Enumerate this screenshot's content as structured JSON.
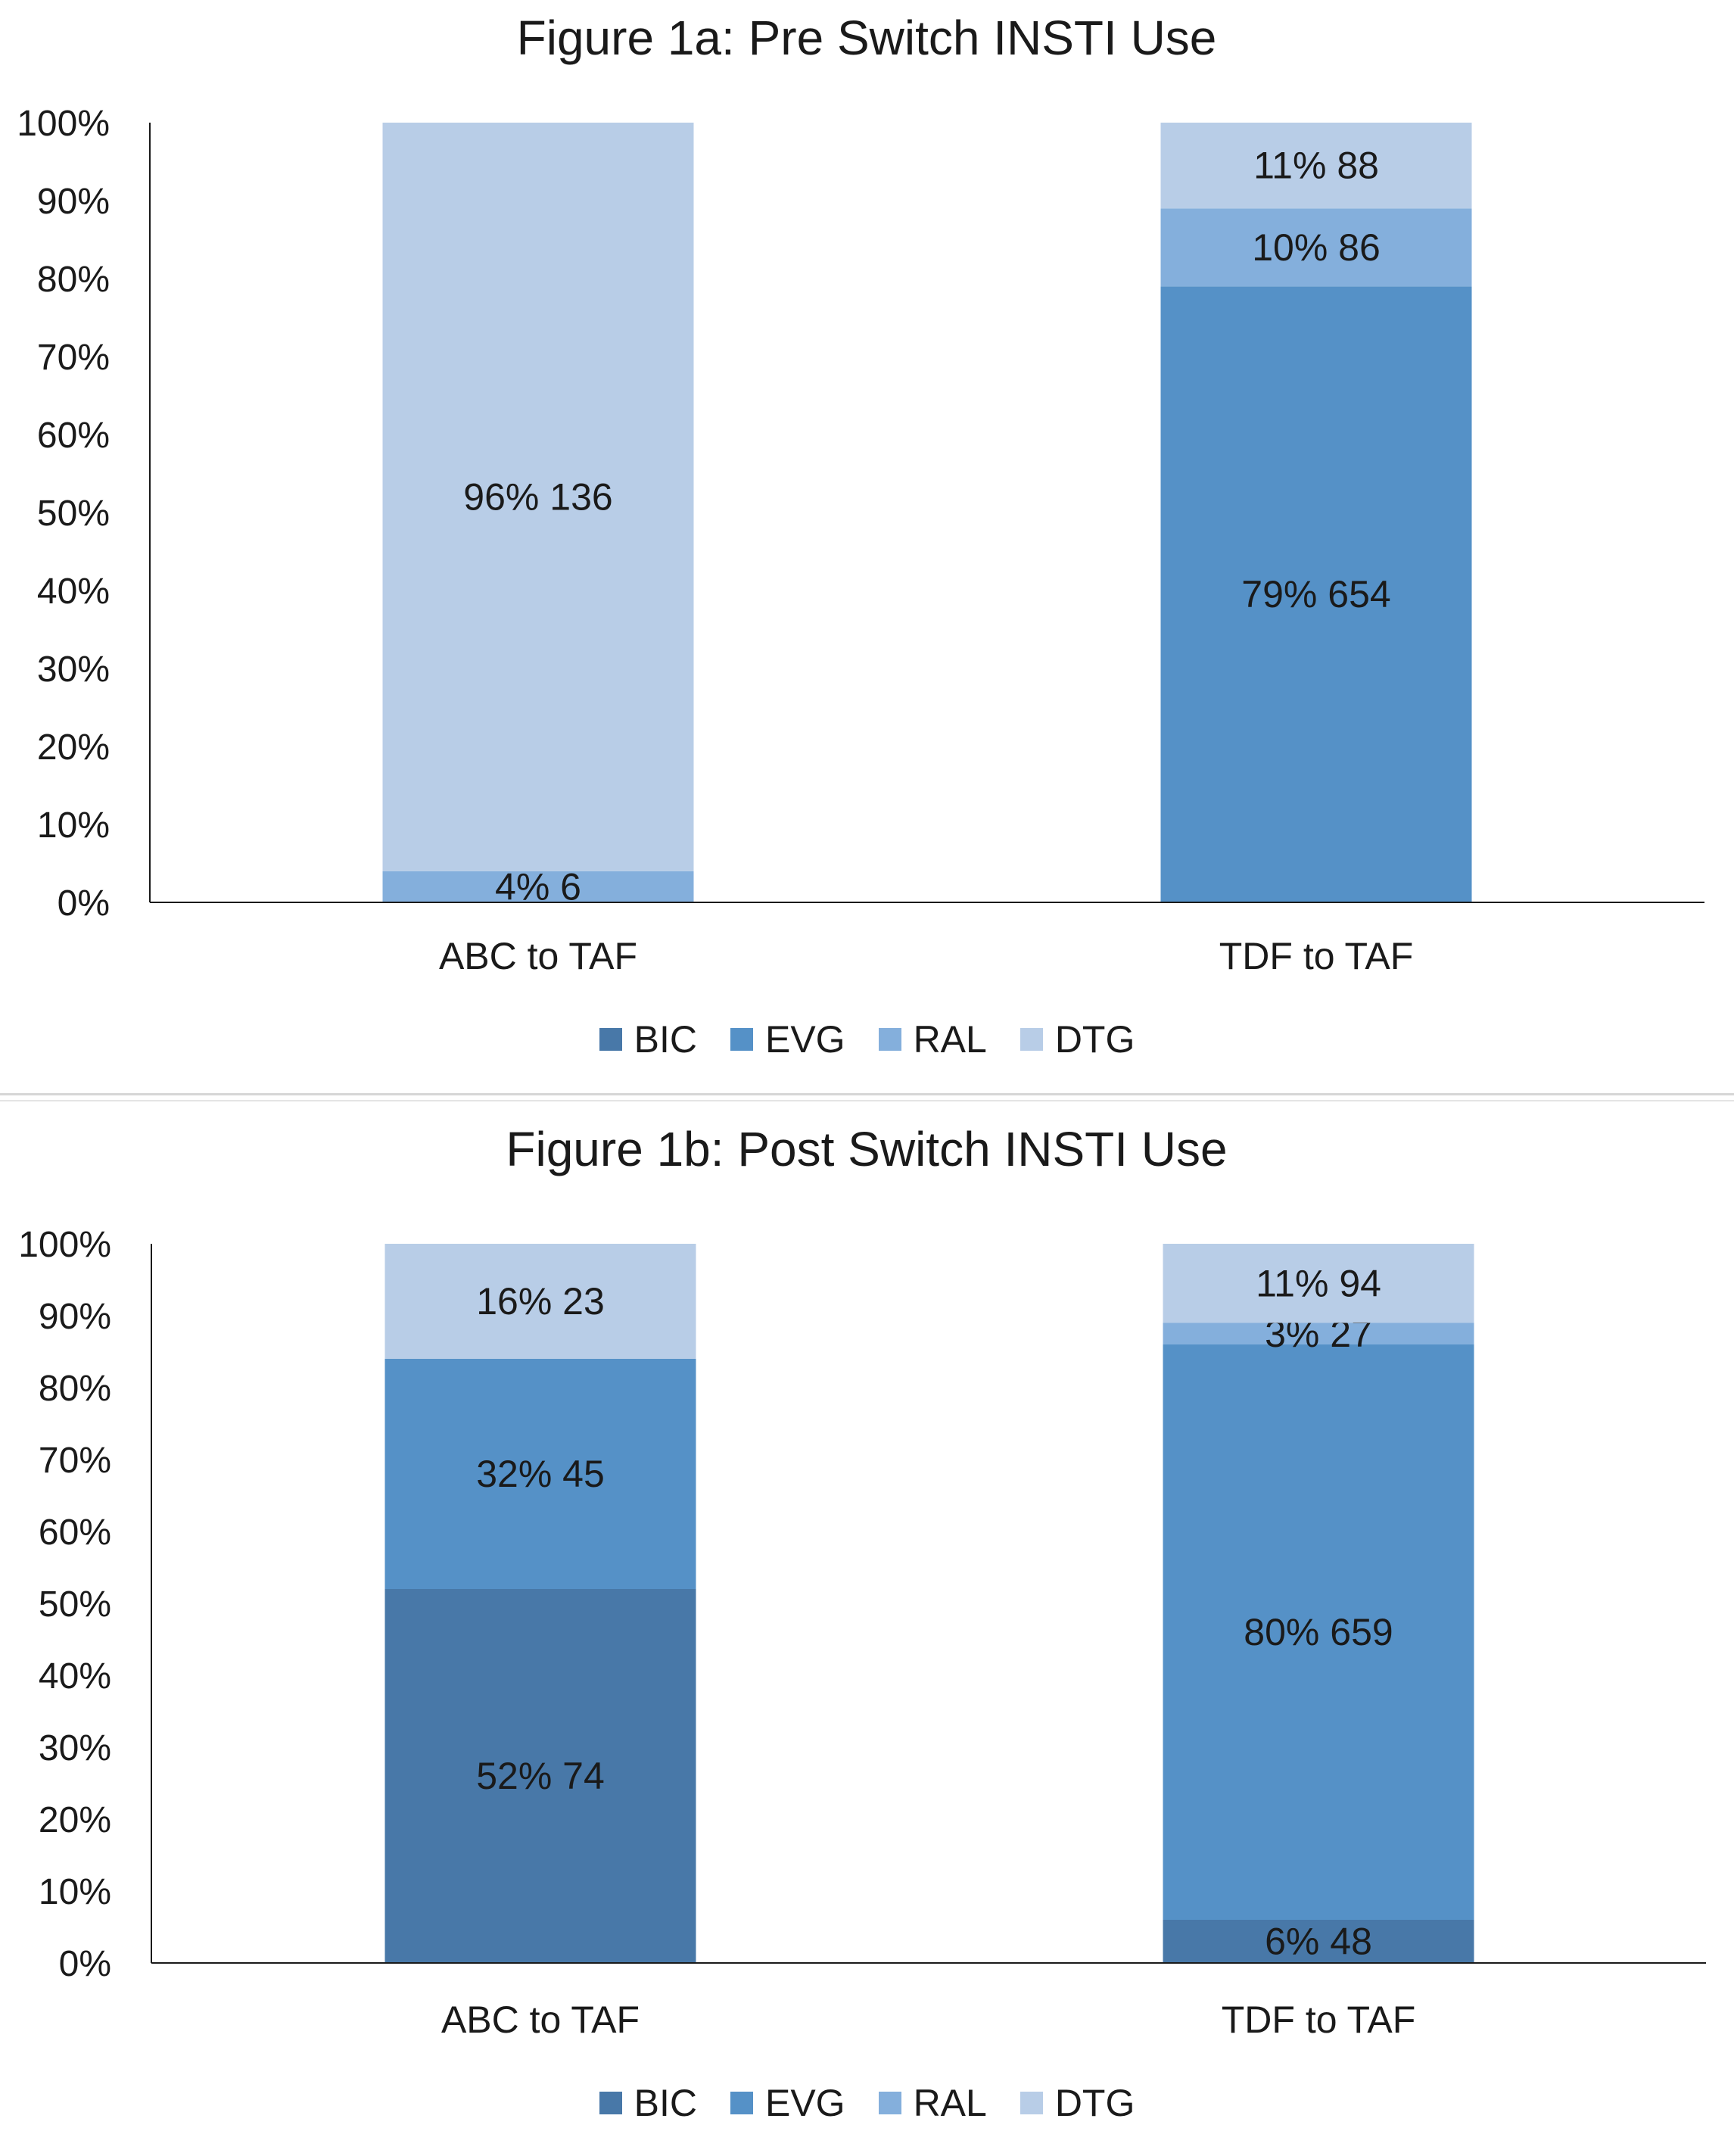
{
  "colors": {
    "BIC": "#4878a8",
    "EVG": "#5591c7",
    "RAL": "#84afdc",
    "DTG": "#b8cde7"
  },
  "chart_data": [
    {
      "type": "bar",
      "stacked": true,
      "title": "Figure 1a: Pre Switch INSTI Use",
      "categories": [
        "ABC to TAF",
        "TDF to TAF"
      ],
      "y_ticks": [
        "0%",
        "10%",
        "20%",
        "30%",
        "40%",
        "50%",
        "60%",
        "70%",
        "80%",
        "90%",
        "100%"
      ],
      "ylim": [
        0,
        100
      ],
      "grid": false,
      "legend": "bottom",
      "series": [
        {
          "name": "BIC",
          "values": [
            0,
            0
          ],
          "labels": [
            "",
            ""
          ]
        },
        {
          "name": "EVG",
          "values": [
            0,
            79
          ],
          "labels": [
            "",
            "79% 654"
          ]
        },
        {
          "name": "RAL",
          "values": [
            4,
            10
          ],
          "labels": [
            "4% 6",
            "10% 86"
          ]
        },
        {
          "name": "DTG",
          "values": [
            96,
            11
          ],
          "labels": [
            "96% 136",
            "11% 88"
          ]
        }
      ]
    },
    {
      "type": "bar",
      "stacked": true,
      "title": "Figure 1b: Post Switch INSTI Use",
      "categories": [
        "ABC to TAF",
        "TDF to TAF"
      ],
      "y_ticks": [
        "0%",
        "10%",
        "20%",
        "30%",
        "40%",
        "50%",
        "60%",
        "70%",
        "80%",
        "90%",
        "100%"
      ],
      "ylim": [
        0,
        100
      ],
      "grid": false,
      "legend": "bottom",
      "series": [
        {
          "name": "BIC",
          "values": [
            52,
            6
          ],
          "labels": [
            "52% 74",
            "6% 48"
          ]
        },
        {
          "name": "EVG",
          "values": [
            32,
            80
          ],
          "labels": [
            "32% 45",
            "80% 659"
          ]
        },
        {
          "name": "RAL",
          "values": [
            0,
            3
          ],
          "labels": [
            "",
            "3% 27"
          ]
        },
        {
          "name": "DTG",
          "values": [
            16,
            11
          ],
          "labels": [
            "16% 23",
            "11% 94"
          ]
        }
      ]
    }
  ]
}
